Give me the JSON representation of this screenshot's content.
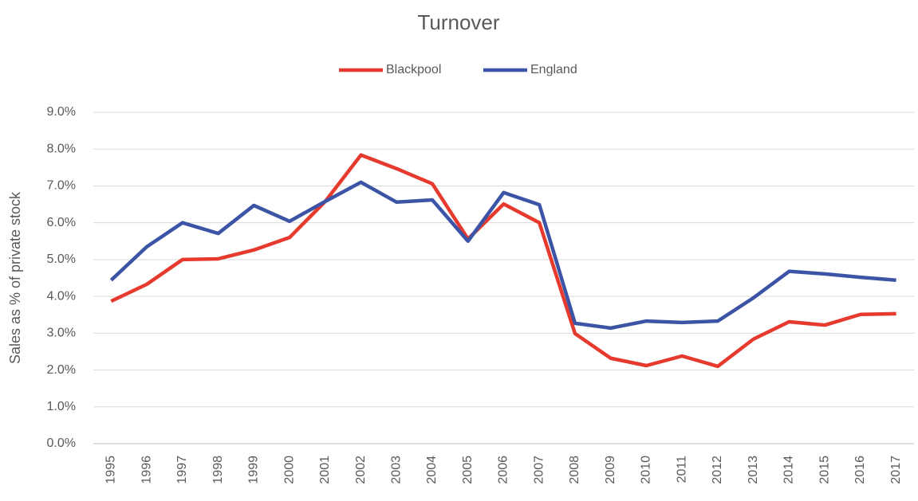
{
  "chart_data": {
    "type": "line",
    "title": "Turnover",
    "y_label": "Sales as % of private stock",
    "categories": [
      "1995",
      "1996",
      "1997",
      "1998",
      "1999",
      "2000",
      "2001",
      "2002",
      "2003",
      "2004",
      "2005",
      "2006",
      "2007",
      "2008",
      "2009",
      "2010",
      "2011",
      "2012",
      "2013",
      "2014",
      "2015",
      "2016",
      "2017"
    ],
    "series": [
      {
        "name": "Blackpool",
        "color": "#e63a2e",
        "values": [
          3.87,
          4.33,
          5.0,
          5.02,
          5.26,
          5.6,
          6.58,
          7.84,
          7.47,
          7.06,
          5.56,
          6.51,
          6.0,
          2.99,
          2.32,
          2.12,
          2.38,
          2.1,
          2.84,
          3.31,
          3.22,
          3.51,
          3.53
        ]
      },
      {
        "name": "England",
        "color": "#3c54a5",
        "values": [
          4.44,
          5.35,
          6.0,
          5.71,
          6.47,
          6.04,
          6.58,
          7.1,
          6.56,
          6.62,
          5.5,
          6.82,
          6.49,
          3.27,
          3.14,
          3.33,
          3.29,
          3.33,
          3.96,
          4.68,
          4.61,
          4.52,
          4.44
        ]
      }
    ],
    "ylim": [
      0,
      9
    ],
    "yticks": [
      {
        "value": 0,
        "label": "0.0%"
      },
      {
        "value": 1,
        "label": "1.0%"
      },
      {
        "value": 2,
        "label": "2.0%"
      },
      {
        "value": 3,
        "label": "3.0%"
      },
      {
        "value": 4,
        "label": "4.0%"
      },
      {
        "value": 5,
        "label": "5.0%"
      },
      {
        "value": 6,
        "label": "6.0%"
      },
      {
        "value": 7,
        "label": "7.0%"
      },
      {
        "value": 8,
        "label": "8.0%"
      },
      {
        "value": 9,
        "label": "9.0%"
      }
    ],
    "grid": true,
    "legend": "top"
  }
}
